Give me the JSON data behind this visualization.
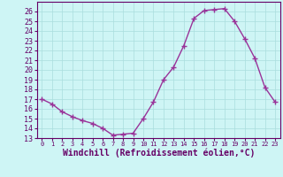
{
  "x": [
    0,
    1,
    2,
    3,
    4,
    5,
    6,
    7,
    8,
    9,
    10,
    11,
    12,
    13,
    14,
    15,
    16,
    17,
    18,
    19,
    20,
    21,
    22,
    23
  ],
  "y": [
    17.0,
    16.5,
    15.7,
    15.2,
    14.8,
    14.5,
    14.0,
    13.3,
    13.4,
    13.5,
    15.0,
    16.7,
    19.0,
    20.3,
    22.5,
    25.3,
    26.1,
    26.2,
    26.3,
    25.0,
    23.2,
    21.2,
    18.2,
    16.7
  ],
  "line_color": "#993399",
  "marker": "+",
  "markersize": 4,
  "xlabel": "Windchill (Refroidissement éolien,°C)",
  "xlabel_fontsize": 7,
  "background_color": "#cef5f5",
  "grid_color": "#aadddd",
  "ylim": [
    13,
    27
  ],
  "xlim": [
    -0.5,
    23.5
  ],
  "yticks": [
    13,
    14,
    15,
    16,
    17,
    18,
    19,
    20,
    21,
    22,
    23,
    24,
    25,
    26
  ],
  "xticks": [
    0,
    1,
    2,
    3,
    4,
    5,
    6,
    7,
    8,
    9,
    10,
    11,
    12,
    13,
    14,
    15,
    16,
    17,
    18,
    19,
    20,
    21,
    22,
    23
  ],
  "ytick_fontsize": 6,
  "xtick_fontsize": 5,
  "spine_color": "#660066",
  "line_width": 1.0
}
